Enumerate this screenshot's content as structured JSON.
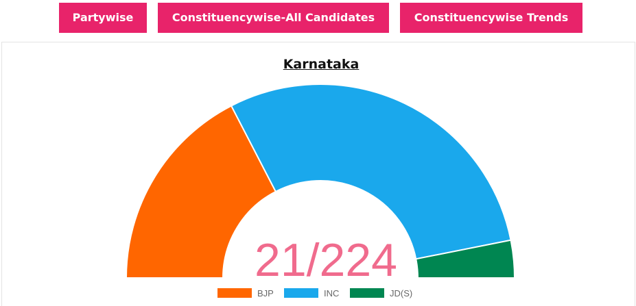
{
  "tabs": [
    {
      "label": "Partywise"
    },
    {
      "label": "Constituencywise-All Candidates"
    },
    {
      "label": "Constituencywise Trends"
    }
  ],
  "chart_data": {
    "type": "pie",
    "variant": "semicircle-donut",
    "title": "Karnataka",
    "center_label": "21/224",
    "categories": [
      "BJP",
      "INC",
      "JD(S)"
    ],
    "values": [
      78,
      132,
      14
    ],
    "colors": [
      "#ff6600",
      "#1aa8ec",
      "#008651"
    ],
    "total_seats": 224,
    "legend_position": "bottom-center"
  }
}
